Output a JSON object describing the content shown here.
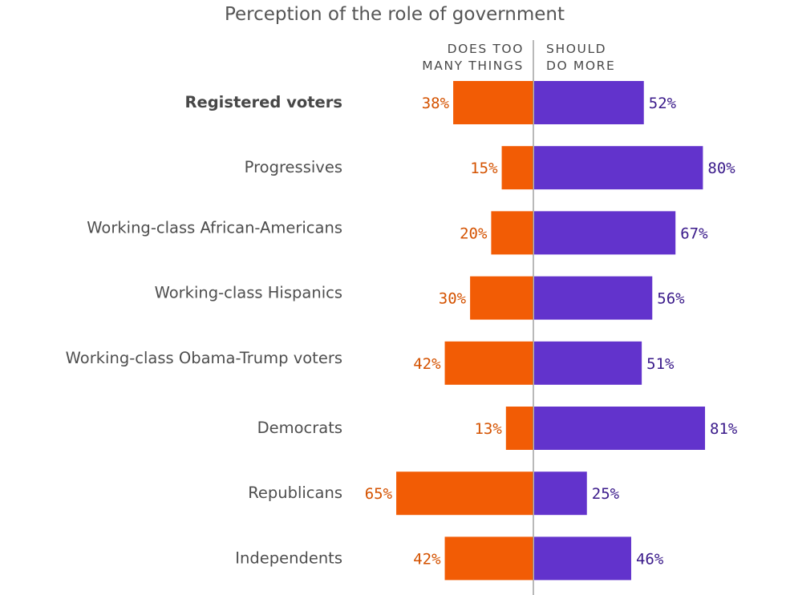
{
  "chart_data": {
    "type": "bar",
    "orientation": "horizontal-diverging",
    "title": "Perception of the role of government",
    "categories": [
      "Registered voters",
      "Progressives",
      "Working-class African-Americans",
      "Working-class Hispanics",
      "Working-class Obama-Trump voters",
      "Democrats",
      "Republicans",
      "Independents"
    ],
    "bold_categories": [
      "Registered voters"
    ],
    "series": [
      {
        "name": "DOES TOO MANY THINGS",
        "header_lines": [
          "DOES TOO",
          "MANY THINGS"
        ],
        "direction": "left",
        "color": "#f25c05",
        "label_color": "#d45200",
        "values": [
          38,
          15,
          20,
          30,
          42,
          13,
          65,
          42
        ]
      },
      {
        "name": "SHOULD DO MORE",
        "header_lines": [
          "SHOULD",
          "DO MORE"
        ],
        "direction": "right",
        "color": "#6233cc",
        "label_color": "#3a1a8a",
        "values": [
          52,
          80,
          67,
          56,
          51,
          81,
          25,
          46
        ]
      }
    ],
    "value_suffix": "%",
    "xlim": [
      0,
      100
    ],
    "grid": false,
    "axis_line_color": "#8a8a8a"
  }
}
